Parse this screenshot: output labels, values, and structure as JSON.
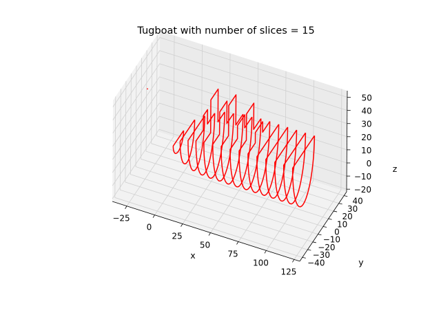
{
  "chart_data": {
    "type": "line3d",
    "title": "Tugboat with number of slices = 15",
    "xlabel": "x",
    "ylabel": "y",
    "zlabel": "z",
    "xlim": [
      -38,
      130
    ],
    "ylim": [
      -45,
      45
    ],
    "zlim": [
      -22,
      55
    ],
    "x_ticks": [
      -25,
      0,
      25,
      50,
      75,
      100,
      125
    ],
    "y_ticks": [
      -40,
      -30,
      -20,
      -10,
      0,
      10,
      20,
      30,
      40
    ],
    "z_ticks": [
      -20,
      -10,
      0,
      10,
      20,
      30,
      40,
      50
    ],
    "x_tick_labels": [
      "−25",
      "0",
      "25",
      "50",
      "75",
      "100",
      "125"
    ],
    "y_tick_labels": [
      "−40",
      "−30",
      "−20",
      "−10",
      "0",
      "10",
      "20",
      "30",
      "40"
    ],
    "z_tick_labels": [
      "−20",
      "−10",
      "0",
      "10",
      "20",
      "30",
      "40",
      "50"
    ],
    "grid": true,
    "series_color": "#ff0000",
    "point": {
      "x": -28,
      "y": 0,
      "z": 40
    },
    "series": [
      {
        "x": 0,
        "half_width": 10,
        "bottom_z": 0,
        "deck_z": 10,
        "cabin": null
      },
      {
        "x": 8,
        "half_width": 14,
        "bottom_z": -6,
        "deck_z": 18,
        "cabin": null
      },
      {
        "x": 16,
        "half_width": 16,
        "bottom_z": -9,
        "deck_z": 22,
        "cabin": null
      },
      {
        "x": 24,
        "half_width": 18,
        "bottom_z": -10,
        "deck_z": 25,
        "cabin": [
          4,
          36
        ]
      },
      {
        "x": 32,
        "half_width": 20,
        "bottom_z": -10,
        "deck_z": 27,
        "cabin": [
          7,
          52
        ]
      },
      {
        "x": 40,
        "half_width": 20,
        "bottom_z": -10,
        "deck_z": 28,
        "cabin": [
          7,
          45
        ]
      },
      {
        "x": 48,
        "half_width": 21,
        "bottom_z": -10,
        "deck_z": 29,
        "cabin": [
          7,
          52
        ]
      },
      {
        "x": 56,
        "half_width": 21,
        "bottom_z": -10,
        "deck_z": 29,
        "cabin": [
          7,
          39
        ]
      },
      {
        "x": 64,
        "half_width": 21,
        "bottom_z": -10,
        "deck_z": 30,
        "cabin": [
          7,
          50
        ]
      },
      {
        "x": 72,
        "half_width": 21,
        "bottom_z": -10,
        "deck_z": 30,
        "cabin": [
          7,
          38
        ]
      },
      {
        "x": 80,
        "half_width": 21,
        "bottom_z": -10,
        "deck_z": 30,
        "cabin": null
      },
      {
        "x": 88,
        "half_width": 21,
        "bottom_z": -10,
        "deck_z": 30,
        "cabin": null
      },
      {
        "x": 96,
        "half_width": 21,
        "bottom_z": -10,
        "deck_z": 30,
        "cabin": null
      },
      {
        "x": 104,
        "half_width": 21,
        "bottom_z": -10,
        "deck_z": 30,
        "cabin": null
      },
      {
        "x": 112,
        "half_width": 21,
        "bottom_z": -10,
        "deck_z": 30,
        "cabin": null
      }
    ]
  }
}
